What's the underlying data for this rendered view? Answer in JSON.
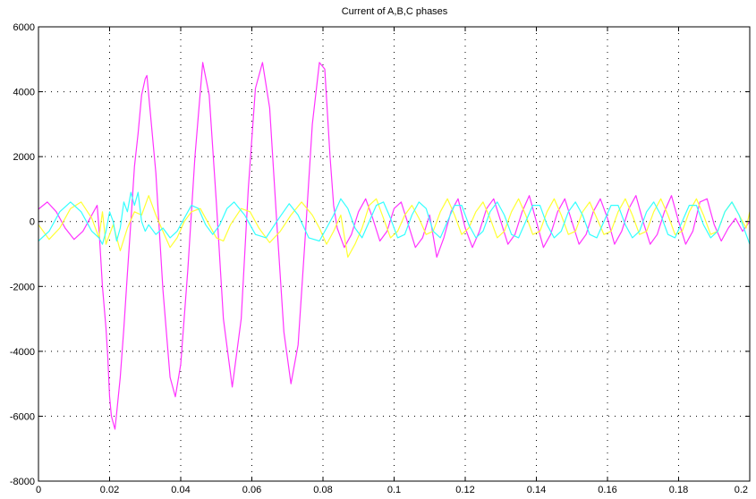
{
  "chart_data": {
    "type": "line",
    "title": "Current of A,B,C phases",
    "xlabel": "",
    "ylabel": "",
    "xlim": [
      0,
      0.2
    ],
    "ylim": [
      -8000,
      6000
    ],
    "grid": true,
    "grid_style": "dotted",
    "x_ticks": [
      "0",
      "0.02",
      "0.04",
      "0.06",
      "0.08",
      "0.1",
      "0.12",
      "0.14",
      "0.16",
      "0.18",
      "0.2"
    ],
    "y_ticks": [
      "6000",
      "4000",
      "2000",
      "0",
      "-2000",
      "-4000",
      "-6000",
      "-8000"
    ],
    "series": [
      {
        "color": "#ff33ff",
        "points": [
          [
            0,
            380
          ],
          [
            0.0025,
            600
          ],
          [
            0.005,
            300
          ],
          [
            0.0075,
            -200
          ],
          [
            0.01,
            -550
          ],
          [
            0.0125,
            -300
          ],
          [
            0.015,
            200
          ],
          [
            0.0165,
            500
          ],
          [
            0.017,
            -200
          ],
          [
            0.018,
            -2000
          ],
          [
            0.019,
            -3300
          ],
          [
            0.0195,
            -4200
          ],
          [
            0.02,
            -5400
          ],
          [
            0.0205,
            -6000
          ],
          [
            0.021,
            -6200
          ],
          [
            0.0215,
            -6400
          ],
          [
            0.022,
            -5900
          ],
          [
            0.023,
            -4800
          ],
          [
            0.024,
            -3300
          ],
          [
            0.025,
            -1600
          ],
          [
            0.026,
            0
          ],
          [
            0.027,
            1700
          ],
          [
            0.028,
            2700
          ],
          [
            0.029,
            3900
          ],
          [
            0.03,
            4400
          ],
          [
            0.0305,
            4500
          ],
          [
            0.031,
            3900
          ],
          [
            0.033,
            1500
          ],
          [
            0.035,
            -2100
          ],
          [
            0.037,
            -4800
          ],
          [
            0.0385,
            -5400
          ],
          [
            0.04,
            -4400
          ],
          [
            0.042,
            -1500
          ],
          [
            0.044,
            2000
          ],
          [
            0.0462,
            4900
          ],
          [
            0.048,
            3900
          ],
          [
            0.05,
            600
          ],
          [
            0.052,
            -3000
          ],
          [
            0.0545,
            -5100
          ],
          [
            0.057,
            -3000
          ],
          [
            0.059,
            1000
          ],
          [
            0.061,
            4100
          ],
          [
            0.063,
            4900
          ],
          [
            0.065,
            3500
          ],
          [
            0.067,
            0
          ],
          [
            0.069,
            -3400
          ],
          [
            0.071,
            -5000
          ],
          [
            0.073,
            -3800
          ],
          [
            0.075,
            -500
          ],
          [
            0.077,
            3000
          ],
          [
            0.079,
            4900
          ],
          [
            0.0805,
            4700
          ],
          [
            0.082,
            2000
          ],
          [
            0.083,
            500
          ],
          [
            0.084,
            -200
          ],
          [
            0.086,
            -800
          ],
          [
            0.088,
            -400
          ],
          [
            0.09,
            300
          ],
          [
            0.092,
            700
          ],
          [
            0.094,
            100
          ],
          [
            0.096,
            -600
          ],
          [
            0.098,
            -300
          ],
          [
            0.1,
            400
          ],
          [
            0.102,
            600
          ],
          [
            0.104,
            -100
          ],
          [
            0.106,
            -800
          ],
          [
            0.108,
            -500
          ],
          [
            0.11,
            200
          ],
          [
            0.112,
            -1100
          ],
          [
            0.114,
            -500
          ],
          [
            0.116,
            300
          ],
          [
            0.118,
            700
          ],
          [
            0.12,
            -200
          ],
          [
            0.122,
            -800
          ],
          [
            0.124,
            -300
          ],
          [
            0.126,
            400
          ],
          [
            0.128,
            700
          ],
          [
            0.13,
            0
          ],
          [
            0.132,
            -700
          ],
          [
            0.134,
            -400
          ],
          [
            0.136,
            300
          ],
          [
            0.138,
            800
          ],
          [
            0.14,
            0
          ],
          [
            0.142,
            -800
          ],
          [
            0.144,
            -400
          ],
          [
            0.146,
            300
          ],
          [
            0.148,
            700
          ],
          [
            0.15,
            0
          ],
          [
            0.152,
            -700
          ],
          [
            0.154,
            -400
          ],
          [
            0.156,
            300
          ],
          [
            0.158,
            700
          ],
          [
            0.16,
            100
          ],
          [
            0.162,
            -700
          ],
          [
            0.164,
            -300
          ],
          [
            0.166,
            400
          ],
          [
            0.168,
            800
          ],
          [
            0.17,
            0
          ],
          [
            0.172,
            -700
          ],
          [
            0.174,
            -400
          ],
          [
            0.176,
            300
          ],
          [
            0.178,
            800
          ],
          [
            0.18,
            0
          ],
          [
            0.182,
            -700
          ],
          [
            0.184,
            -300
          ],
          [
            0.186,
            600
          ],
          [
            0.188,
            700
          ],
          [
            0.19,
            -100
          ],
          [
            0.192,
            -600
          ],
          [
            0.194,
            -200
          ],
          [
            0.196,
            100
          ],
          [
            0.198,
            -300
          ],
          [
            0.2,
            0
          ]
        ]
      },
      {
        "color": "#ffff33",
        "points": [
          [
            0,
            -100
          ],
          [
            0.003,
            -550
          ],
          [
            0.006,
            -200
          ],
          [
            0.009,
            400
          ],
          [
            0.012,
            600
          ],
          [
            0.015,
            100
          ],
          [
            0.017,
            -500
          ],
          [
            0.018,
            300
          ],
          [
            0.019,
            -700
          ],
          [
            0.021,
            -100
          ],
          [
            0.023,
            -900
          ],
          [
            0.025,
            -200
          ],
          [
            0.027,
            300
          ],
          [
            0.029,
            200
          ],
          [
            0.031,
            800
          ],
          [
            0.033,
            200
          ],
          [
            0.035,
            -300
          ],
          [
            0.037,
            -800
          ],
          [
            0.039,
            -500
          ],
          [
            0.041,
            0
          ],
          [
            0.043,
            300
          ],
          [
            0.0455,
            400
          ],
          [
            0.048,
            -100
          ],
          [
            0.05,
            -500
          ],
          [
            0.052,
            -600
          ],
          [
            0.054,
            -100
          ],
          [
            0.057,
            400
          ],
          [
            0.0595,
            300
          ],
          [
            0.062,
            -200
          ],
          [
            0.065,
            -650
          ],
          [
            0.068,
            -300
          ],
          [
            0.071,
            200
          ],
          [
            0.074,
            600
          ],
          [
            0.077,
            200
          ],
          [
            0.079,
            -200
          ],
          [
            0.081,
            -700
          ],
          [
            0.083,
            -300
          ],
          [
            0.085,
            200
          ],
          [
            0.087,
            -1100
          ],
          [
            0.089,
            -700
          ],
          [
            0.091,
            -200
          ],
          [
            0.093,
            500
          ],
          [
            0.095,
            700
          ],
          [
            0.097,
            100
          ],
          [
            0.099,
            -500
          ],
          [
            0.101,
            -300
          ],
          [
            0.103,
            200
          ],
          [
            0.105,
            500
          ],
          [
            0.107,
            100
          ],
          [
            0.109,
            -400
          ],
          [
            0.111,
            -300
          ],
          [
            0.113,
            300
          ],
          [
            0.115,
            700
          ],
          [
            0.117,
            200
          ],
          [
            0.119,
            -400
          ],
          [
            0.121,
            -200
          ],
          [
            0.123,
            300
          ],
          [
            0.125,
            600
          ],
          [
            0.127,
            100
          ],
          [
            0.129,
            -500
          ],
          [
            0.131,
            -300
          ],
          [
            0.133,
            300
          ],
          [
            0.135,
            700
          ],
          [
            0.137,
            200
          ],
          [
            0.139,
            -400
          ],
          [
            0.141,
            -300
          ],
          [
            0.143,
            300
          ],
          [
            0.145,
            700
          ],
          [
            0.147,
            200
          ],
          [
            0.149,
            -400
          ],
          [
            0.151,
            -300
          ],
          [
            0.153,
            300
          ],
          [
            0.155,
            600
          ],
          [
            0.157,
            100
          ],
          [
            0.159,
            -400
          ],
          [
            0.161,
            -300
          ],
          [
            0.163,
            300
          ],
          [
            0.165,
            700
          ],
          [
            0.167,
            200
          ],
          [
            0.169,
            -400
          ],
          [
            0.171,
            -300
          ],
          [
            0.173,
            300
          ],
          [
            0.175,
            700
          ],
          [
            0.177,
            200
          ],
          [
            0.179,
            -400
          ],
          [
            0.181,
            -300
          ],
          [
            0.183,
            300
          ],
          [
            0.185,
            700
          ],
          [
            0.187,
            200
          ],
          [
            0.189,
            -400
          ],
          [
            0.191,
            -300
          ],
          [
            0.193,
            300
          ],
          [
            0.195,
            600
          ],
          [
            0.197,
            200
          ],
          [
            0.199,
            -200
          ],
          [
            0.2,
            300
          ]
        ]
      },
      {
        "color": "#33ffff",
        "points": [
          [
            0,
            -600
          ],
          [
            0.003,
            -300
          ],
          [
            0.006,
            300
          ],
          [
            0.009,
            600
          ],
          [
            0.012,
            300
          ],
          [
            0.015,
            -300
          ],
          [
            0.017,
            -500
          ],
          [
            0.018,
            -700
          ],
          [
            0.019,
            -300
          ],
          [
            0.02,
            300
          ],
          [
            0.021,
            0
          ],
          [
            0.022,
            -600
          ],
          [
            0.023,
            -200
          ],
          [
            0.024,
            600
          ],
          [
            0.025,
            300
          ],
          [
            0.026,
            900
          ],
          [
            0.027,
            500
          ],
          [
            0.028,
            900
          ],
          [
            0.029,
            0
          ],
          [
            0.03,
            -300
          ],
          [
            0.031,
            -100
          ],
          [
            0.033,
            -400
          ],
          [
            0.035,
            -200
          ],
          [
            0.037,
            -500
          ],
          [
            0.039,
            -300
          ],
          [
            0.041,
            100
          ],
          [
            0.043,
            500
          ],
          [
            0.045,
            400
          ],
          [
            0.047,
            -100
          ],
          [
            0.049,
            -400
          ],
          [
            0.051,
            -100
          ],
          [
            0.053,
            400
          ],
          [
            0.055,
            600
          ],
          [
            0.058,
            200
          ],
          [
            0.061,
            -400
          ],
          [
            0.064,
            -500
          ],
          [
            0.067,
            0
          ],
          [
            0.0705,
            550
          ],
          [
            0.073,
            200
          ],
          [
            0.076,
            -500
          ],
          [
            0.079,
            -600
          ],
          [
            0.081,
            -200
          ],
          [
            0.083,
            200
          ],
          [
            0.085,
            700
          ],
          [
            0.087,
            400
          ],
          [
            0.089,
            -200
          ],
          [
            0.091,
            -500
          ],
          [
            0.093,
            0
          ],
          [
            0.095,
            500
          ],
          [
            0.097,
            600
          ],
          [
            0.099,
            100
          ],
          [
            0.101,
            -500
          ],
          [
            0.103,
            -400
          ],
          [
            0.105,
            200
          ],
          [
            0.107,
            600
          ],
          [
            0.109,
            400
          ],
          [
            0.111,
            -300
          ],
          [
            0.113,
            -500
          ],
          [
            0.115,
            0
          ],
          [
            0.117,
            500
          ],
          [
            0.119,
            500
          ],
          [
            0.121,
            -100
          ],
          [
            0.123,
            -500
          ],
          [
            0.125,
            -300
          ],
          [
            0.127,
            300
          ],
          [
            0.129,
            600
          ],
          [
            0.131,
            200
          ],
          [
            0.133,
            -400
          ],
          [
            0.135,
            -500
          ],
          [
            0.137,
            0
          ],
          [
            0.139,
            500
          ],
          [
            0.141,
            500
          ],
          [
            0.143,
            -100
          ],
          [
            0.145,
            -500
          ],
          [
            0.147,
            -300
          ],
          [
            0.149,
            300
          ],
          [
            0.151,
            600
          ],
          [
            0.153,
            200
          ],
          [
            0.155,
            -400
          ],
          [
            0.157,
            -500
          ],
          [
            0.159,
            0
          ],
          [
            0.161,
            500
          ],
          [
            0.163,
            500
          ],
          [
            0.165,
            -100
          ],
          [
            0.167,
            -500
          ],
          [
            0.169,
            -300
          ],
          [
            0.171,
            300
          ],
          [
            0.173,
            600
          ],
          [
            0.175,
            200
          ],
          [
            0.177,
            -400
          ],
          [
            0.179,
            -500
          ],
          [
            0.181,
            0
          ],
          [
            0.183,
            500
          ],
          [
            0.185,
            500
          ],
          [
            0.187,
            -100
          ],
          [
            0.189,
            -500
          ],
          [
            0.191,
            -300
          ],
          [
            0.193,
            300
          ],
          [
            0.195,
            600
          ],
          [
            0.197,
            200
          ],
          [
            0.199,
            -400
          ],
          [
            0.2,
            -700
          ]
        ]
      }
    ]
  }
}
